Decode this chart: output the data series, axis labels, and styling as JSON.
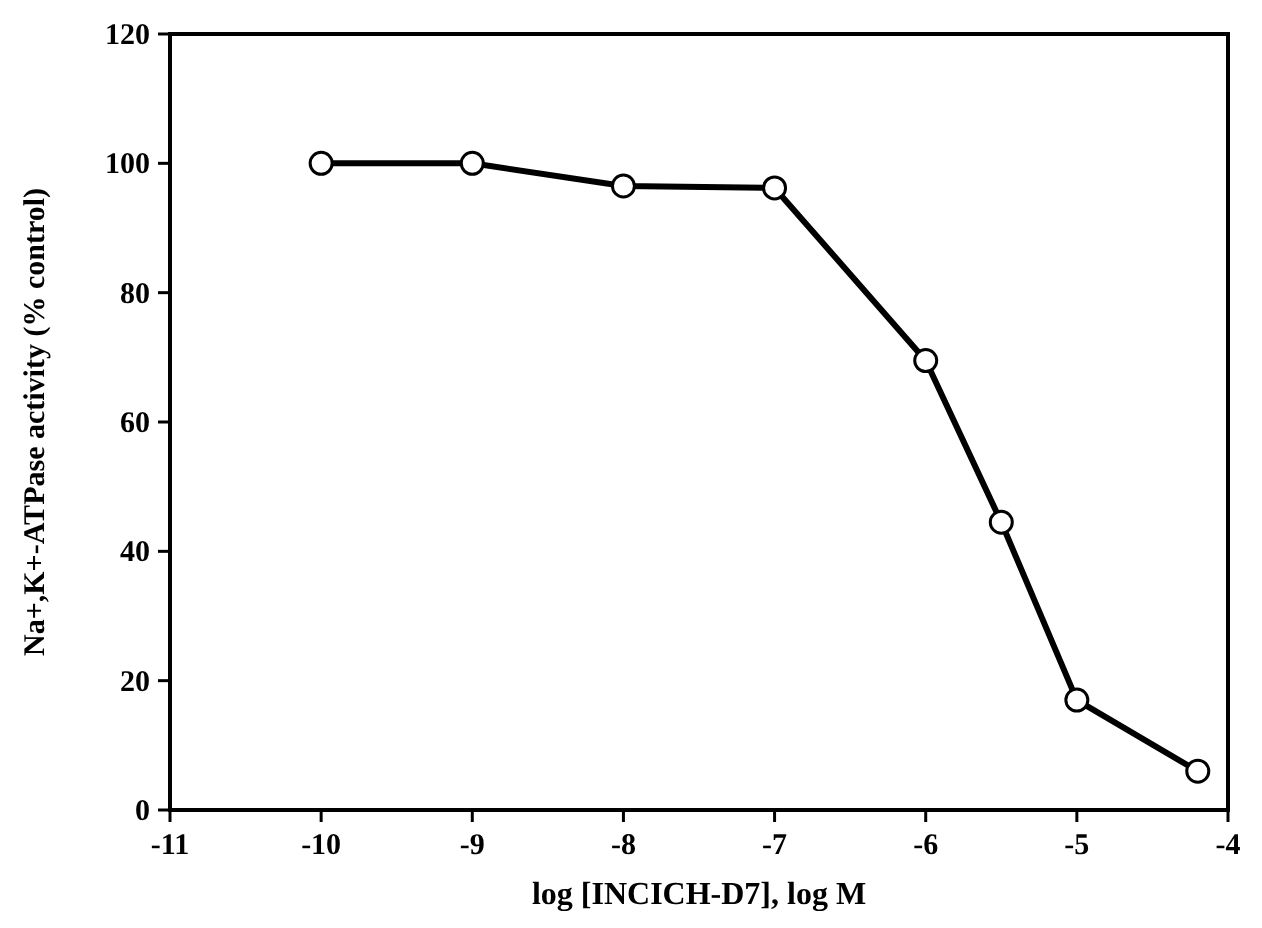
{
  "chart_data": {
    "type": "line",
    "xlabel": "log [INCICH-D7], log M",
    "ylabel": "Na+,K+-ATPase activity (% control)",
    "x": [
      -10,
      -9,
      -8,
      -7,
      -6,
      -5.5,
      -5,
      -4.2
    ],
    "series": [
      {
        "color": "#000000",
        "values": [
          100,
          100,
          96.5,
          96.2,
          69.5,
          44.5,
          17,
          6
        ]
      }
    ],
    "xlim": [
      -11,
      -4
    ],
    "xticks": [
      -11,
      -10,
      -9,
      -8,
      -7,
      -6,
      -5,
      -4
    ],
    "ylim": [
      0,
      120
    ],
    "yticks": [
      0,
      20,
      40,
      60,
      80,
      100,
      120
    ],
    "grid": false,
    "marker": "circle",
    "line_style": "solid"
  }
}
